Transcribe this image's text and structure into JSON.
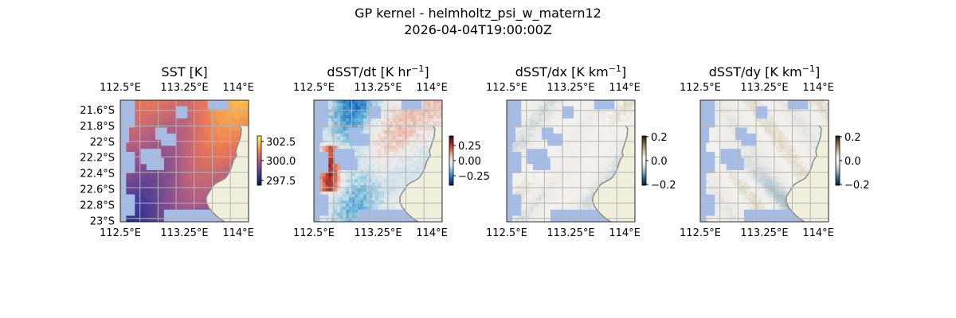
{
  "figure": {
    "title_line1": "GP kernel - helmholtz_psi_w_matern12",
    "title_line2": "2026-04-04T19:00:00Z"
  },
  "chart_data": [
    {
      "type": "heatmap",
      "title": "SST [K]",
      "lon_ticks": [
        "112.5°E",
        "113.25°E",
        "114°E"
      ],
      "lat_ticks": [
        "21.6°S",
        "21.8°S",
        "22°S",
        "22.2°S",
        "22.4°S",
        "22.6°S",
        "22.8°S",
        "23°S"
      ],
      "colorbar": {
        "colormap": "thermal",
        "ticks": [
          "302.5",
          "300.0",
          "297.5"
        ],
        "range": [
          296.5,
          303.5
        ]
      },
      "grid": true
    },
    {
      "type": "heatmap",
      "title": "dSST/dt [K hr",
      "title_sup": "−1",
      "title_end": "]",
      "lon_ticks": [
        "112.5°E",
        "113.25°E",
        "114°E"
      ],
      "colorbar": {
        "colormap": "balance",
        "ticks": [
          "0.25",
          "0.00",
          "−0.25"
        ],
        "range": [
          -0.45,
          0.45
        ]
      },
      "grid": true
    },
    {
      "type": "heatmap",
      "title": "dSST/dx [K km",
      "title_sup": "−1",
      "title_end": "]",
      "lon_ticks": [
        "112.5°E",
        "113.25°E",
        "114°E"
      ],
      "colorbar": {
        "colormap": "diff",
        "ticks": [
          "0.2",
          "0.0",
          "−0.2"
        ],
        "range": [
          -0.2,
          0.2
        ]
      },
      "grid": true
    },
    {
      "type": "heatmap",
      "title": "dSST/dy [K km",
      "title_sup": "−1",
      "title_end": "]",
      "lon_ticks": [
        "112.5°E",
        "113.25°E",
        "114°E"
      ],
      "colorbar": {
        "colormap": "diff",
        "ticks": [
          "0.2",
          "0.0",
          "−0.2"
        ],
        "range": [
          -0.2,
          0.2
        ]
      },
      "grid": true
    }
  ],
  "colors": {
    "land": "#efefdb",
    "coastline": "#8c8c8c",
    "missing": "#a5bde6",
    "gridline": "#b4b4b4"
  }
}
